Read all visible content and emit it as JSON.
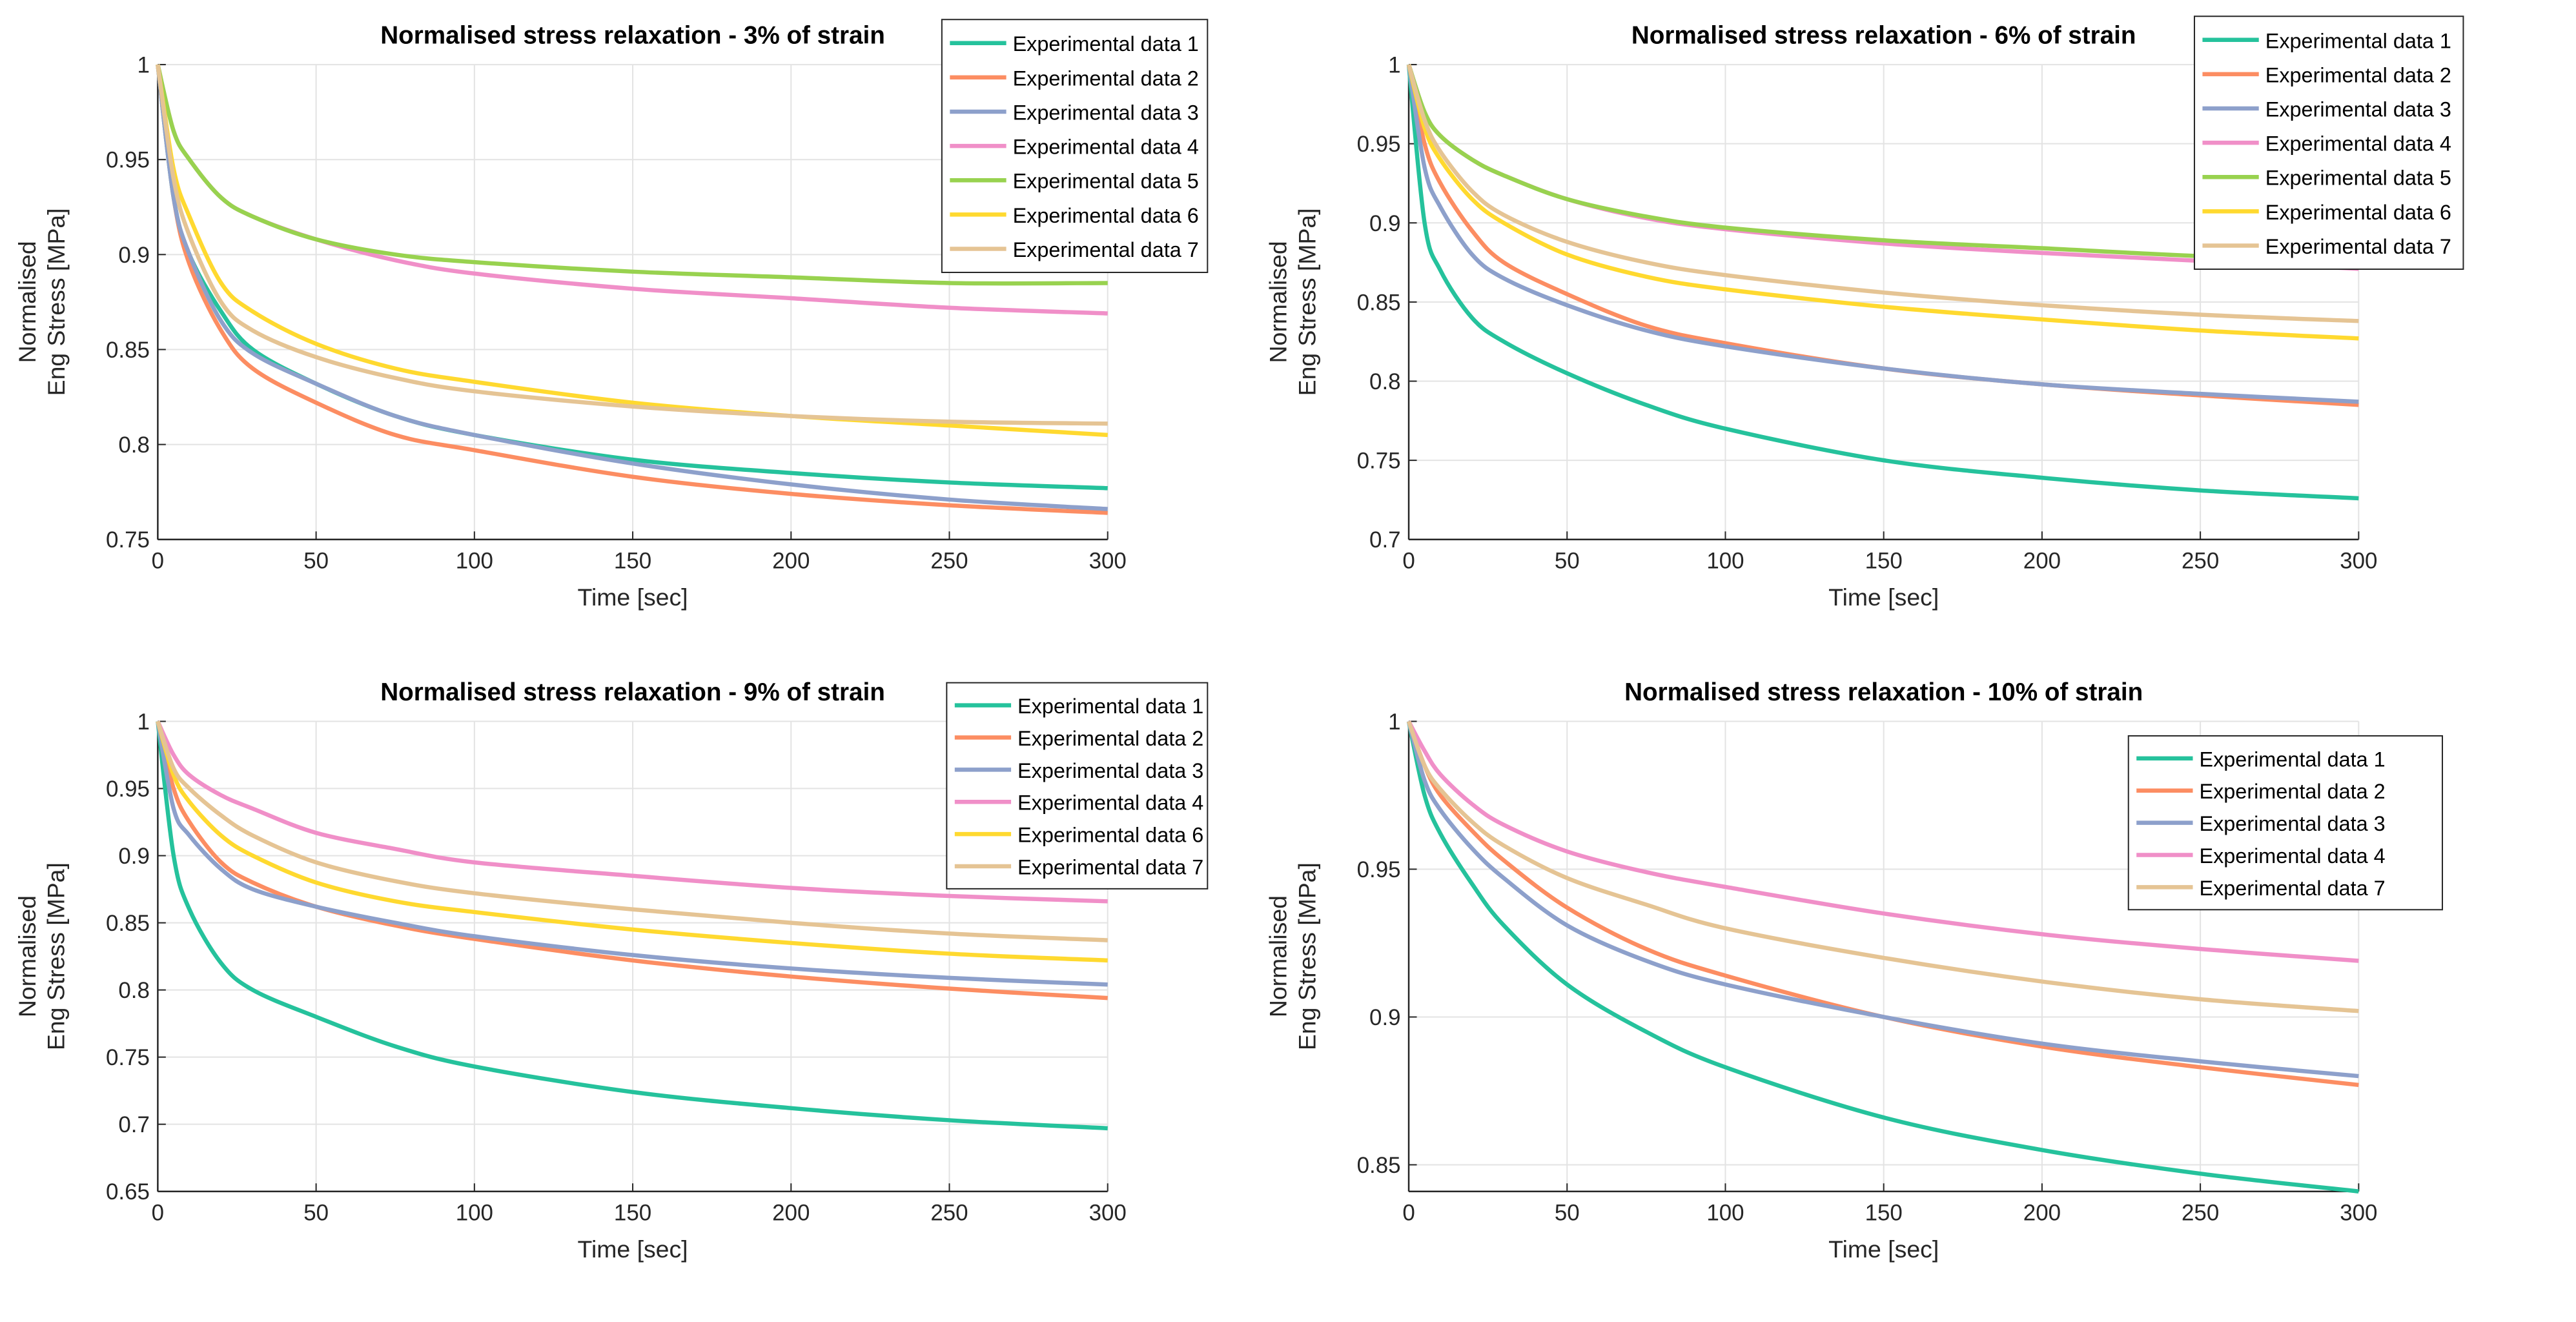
{
  "chart_data": [
    {
      "type": "line",
      "title": "Normalised stress relaxation - 3% of strain",
      "xlabel": "Time [sec]",
      "ylabel": [
        "Normalised",
        "Eng Stress [MPa]"
      ],
      "xlim": [
        0,
        300
      ],
      "ylim": [
        0.75,
        1
      ],
      "xticks": [
        0,
        50,
        100,
        150,
        200,
        250,
        300
      ],
      "yticks": [
        0.75,
        0.8,
        0.85,
        0.9,
        0.95,
        1
      ],
      "grid": true,
      "legend_position": "top-right",
      "x": [
        0,
        5,
        10,
        20,
        30,
        50,
        75,
        100,
        150,
        200,
        250,
        300
      ],
      "series": [
        {
          "name": "Experimental data 1",
          "color": "#25c29c",
          "values": [
            1,
            0.93,
            0.9,
            0.87,
            0.85,
            0.832,
            0.815,
            0.805,
            0.792,
            0.785,
            0.78,
            0.777
          ]
        },
        {
          "name": "Experimental data 2",
          "color": "#fc8d62",
          "values": [
            1,
            0.93,
            0.895,
            0.86,
            0.84,
            0.822,
            0.805,
            0.797,
            0.783,
            0.774,
            0.768,
            0.764
          ]
        },
        {
          "name": "Experimental data 3",
          "color": "#8da0cb",
          "values": [
            1,
            0.93,
            0.9,
            0.865,
            0.848,
            0.832,
            0.815,
            0.805,
            0.79,
            0.779,
            0.771,
            0.766
          ]
        },
        {
          "name": "Experimental data 4",
          "color": "#f08fc8",
          "values": [
            1,
            0.965,
            0.95,
            0.93,
            0.92,
            0.908,
            0.897,
            0.89,
            0.882,
            0.877,
            0.872,
            0.869
          ]
        },
        {
          "name": "Experimental data 5",
          "color": "#98d24f",
          "values": [
            1,
            0.965,
            0.95,
            0.93,
            0.92,
            0.908,
            0.9,
            0.896,
            0.891,
            0.888,
            0.885,
            0.885
          ]
        },
        {
          "name": "Experimental data 6",
          "color": "#ffd92f",
          "values": [
            1,
            0.945,
            0.92,
            0.885,
            0.87,
            0.853,
            0.84,
            0.833,
            0.822,
            0.815,
            0.81,
            0.805
          ]
        },
        {
          "name": "Experimental data 7",
          "color": "#e5c494",
          "values": [
            1,
            0.94,
            0.91,
            0.875,
            0.86,
            0.846,
            0.835,
            0.828,
            0.82,
            0.815,
            0.812,
            0.811
          ]
        }
      ]
    },
    {
      "type": "line",
      "title": "Normalised stress relaxation - 6% of strain",
      "xlabel": "Time [sec]",
      "ylabel": [
        "Normalised",
        "Eng Stress [MPa]"
      ],
      "xlim": [
        0,
        300
      ],
      "ylim": [
        0.7,
        1
      ],
      "xticks": [
        0,
        50,
        100,
        150,
        200,
        250,
        300
      ],
      "yticks": [
        0.7,
        0.75,
        0.8,
        0.85,
        0.9,
        0.95,
        1
      ],
      "grid": true,
      "legend_position": "top-right",
      "x": [
        0,
        5,
        10,
        20,
        30,
        50,
        75,
        100,
        150,
        200,
        250,
        300
      ],
      "series": [
        {
          "name": "Experimental data 1",
          "color": "#25c29c",
          "values": [
            1,
            0.9,
            0.87,
            0.84,
            0.825,
            0.805,
            0.785,
            0.77,
            0.75,
            0.739,
            0.731,
            0.726
          ]
        },
        {
          "name": "Experimental data 2",
          "color": "#fc8d62",
          "values": [
            1,
            0.95,
            0.925,
            0.895,
            0.875,
            0.855,
            0.835,
            0.824,
            0.808,
            0.798,
            0.791,
            0.785
          ]
        },
        {
          "name": "Experimental data 3",
          "color": "#8da0cb",
          "values": [
            1,
            0.935,
            0.91,
            0.88,
            0.865,
            0.848,
            0.832,
            0.822,
            0.808,
            0.798,
            0.792,
            0.787
          ]
        },
        {
          "name": "Experimental data 4",
          "color": "#f08fc8",
          "values": [
            1,
            0.97,
            0.955,
            0.94,
            0.93,
            0.915,
            0.903,
            0.896,
            0.887,
            0.881,
            0.876,
            0.871
          ]
        },
        {
          "name": "Experimental data 5",
          "color": "#98d24f",
          "values": [
            1,
            0.97,
            0.955,
            0.94,
            0.93,
            0.915,
            0.904,
            0.897,
            0.889,
            0.884,
            0.879,
            0.876
          ]
        },
        {
          "name": "Experimental data 6",
          "color": "#ffd92f",
          "values": [
            1,
            0.96,
            0.94,
            0.915,
            0.9,
            0.88,
            0.866,
            0.858,
            0.847,
            0.839,
            0.832,
            0.827
          ]
        },
        {
          "name": "Experimental data 7",
          "color": "#e5c494",
          "values": [
            1,
            0.965,
            0.945,
            0.92,
            0.905,
            0.888,
            0.875,
            0.867,
            0.856,
            0.848,
            0.842,
            0.838
          ]
        }
      ]
    },
    {
      "type": "line",
      "title": "Normalised stress relaxation - 9% of strain",
      "xlabel": "Time [sec]",
      "ylabel": [
        "Normalised",
        "Eng Stress [MPa]"
      ],
      "xlim": [
        0,
        300
      ],
      "ylim": [
        0.65,
        1
      ],
      "xticks": [
        0,
        50,
        100,
        150,
        200,
        250,
        300
      ],
      "yticks": [
        0.65,
        0.7,
        0.75,
        0.8,
        0.85,
        0.9,
        0.95,
        1
      ],
      "grid": true,
      "legend_position": "top-right",
      "x": [
        0,
        5,
        10,
        20,
        30,
        50,
        75,
        100,
        150,
        200,
        250,
        300
      ],
      "series": [
        {
          "name": "Experimental data 1",
          "color": "#25c29c",
          "values": [
            1,
            0.9,
            0.86,
            0.82,
            0.8,
            0.78,
            0.758,
            0.743,
            0.724,
            0.712,
            0.703,
            0.697
          ]
        },
        {
          "name": "Experimental data 2",
          "color": "#fc8d62",
          "values": [
            1,
            0.95,
            0.925,
            0.895,
            0.88,
            0.862,
            0.848,
            0.838,
            0.822,
            0.81,
            0.801,
            0.794
          ]
        },
        {
          "name": "Experimental data 3",
          "color": "#8da0cb",
          "values": [
            1,
            0.935,
            0.915,
            0.89,
            0.875,
            0.862,
            0.85,
            0.84,
            0.826,
            0.816,
            0.809,
            0.804
          ]
        },
        {
          "name": "Experimental data 4",
          "color": "#f08fc8",
          "values": [
            1,
            0.975,
            0.96,
            0.945,
            0.935,
            0.917,
            0.905,
            0.895,
            0.885,
            0.876,
            0.87,
            0.866
          ]
        },
        {
          "name": "Experimental data 6",
          "color": "#ffd92f",
          "values": [
            1,
            0.96,
            0.94,
            0.915,
            0.9,
            0.88,
            0.866,
            0.858,
            0.845,
            0.835,
            0.827,
            0.822
          ]
        },
        {
          "name": "Experimental data 7",
          "color": "#e5c494",
          "values": [
            1,
            0.965,
            0.95,
            0.93,
            0.915,
            0.895,
            0.881,
            0.872,
            0.86,
            0.85,
            0.842,
            0.837
          ]
        }
      ]
    },
    {
      "type": "line",
      "title": "Normalised stress relaxation - 10% of strain",
      "xlabel": "Time [sec]",
      "ylabel": [
        "Normalised",
        "Eng Stress [MPa]"
      ],
      "xlim": [
        0,
        300
      ],
      "ylim": [
        0.841,
        1
      ],
      "xticks": [
        0,
        50,
        100,
        150,
        200,
        250,
        300
      ],
      "yticks": [
        0.85,
        0.9,
        0.95,
        1
      ],
      "grid": true,
      "legend_position": "top-right",
      "x": [
        0,
        5,
        10,
        20,
        30,
        50,
        75,
        100,
        150,
        200,
        250,
        300
      ],
      "series": [
        {
          "name": "Experimental data 1",
          "color": "#25c29c",
          "values": [
            1,
            0.975,
            0.962,
            0.945,
            0.931,
            0.911,
            0.895,
            0.883,
            0.866,
            0.855,
            0.847,
            0.841
          ]
        },
        {
          "name": "Experimental data 2",
          "color": "#fc8d62",
          "values": [
            1,
            0.985,
            0.975,
            0.963,
            0.953,
            0.937,
            0.923,
            0.914,
            0.9,
            0.89,
            0.883,
            0.877
          ]
        },
        {
          "name": "Experimental data 3",
          "color": "#8da0cb",
          "values": [
            1,
            0.98,
            0.97,
            0.957,
            0.947,
            0.931,
            0.919,
            0.911,
            0.9,
            0.891,
            0.885,
            0.88
          ]
        },
        {
          "name": "Experimental data 4",
          "color": "#f08fc8",
          "values": [
            1,
            0.99,
            0.982,
            0.972,
            0.965,
            0.956,
            0.949,
            0.944,
            0.935,
            0.928,
            0.923,
            0.919
          ]
        },
        {
          "name": "Experimental data 7",
          "color": "#e5c494",
          "values": [
            1,
            0.985,
            0.977,
            0.966,
            0.958,
            0.947,
            0.938,
            0.93,
            0.92,
            0.912,
            0.906,
            0.902
          ]
        }
      ]
    }
  ]
}
